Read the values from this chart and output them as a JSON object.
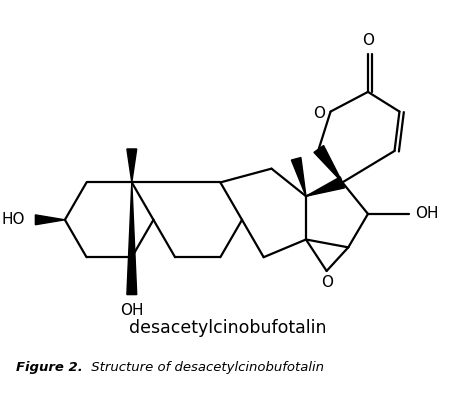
{
  "title": "desacetylcinobufotalin",
  "figure_label": "Figure 2.",
  "figure_caption": " Structure of desacetylcinobufotalin",
  "background_color": "#ffffff",
  "line_color": "#000000",
  "line_width": 1.5
}
